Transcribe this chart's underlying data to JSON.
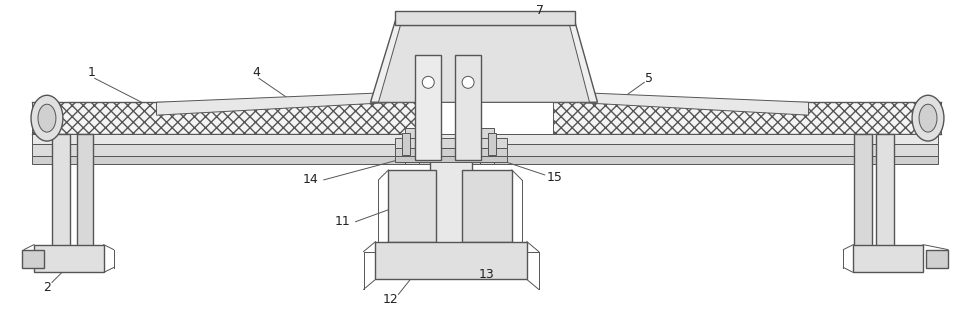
{
  "bg_color": "#ffffff",
  "lc": "#555555",
  "lc_dark": "#333333",
  "fc_belt": "#f0f0f0",
  "fc_frame": "#e8e8e8",
  "fc_gray": "#d8d8d8",
  "fc_dark": "#c8c8c8",
  "figsize": [
    9.69,
    3.12
  ],
  "dpi": 100
}
